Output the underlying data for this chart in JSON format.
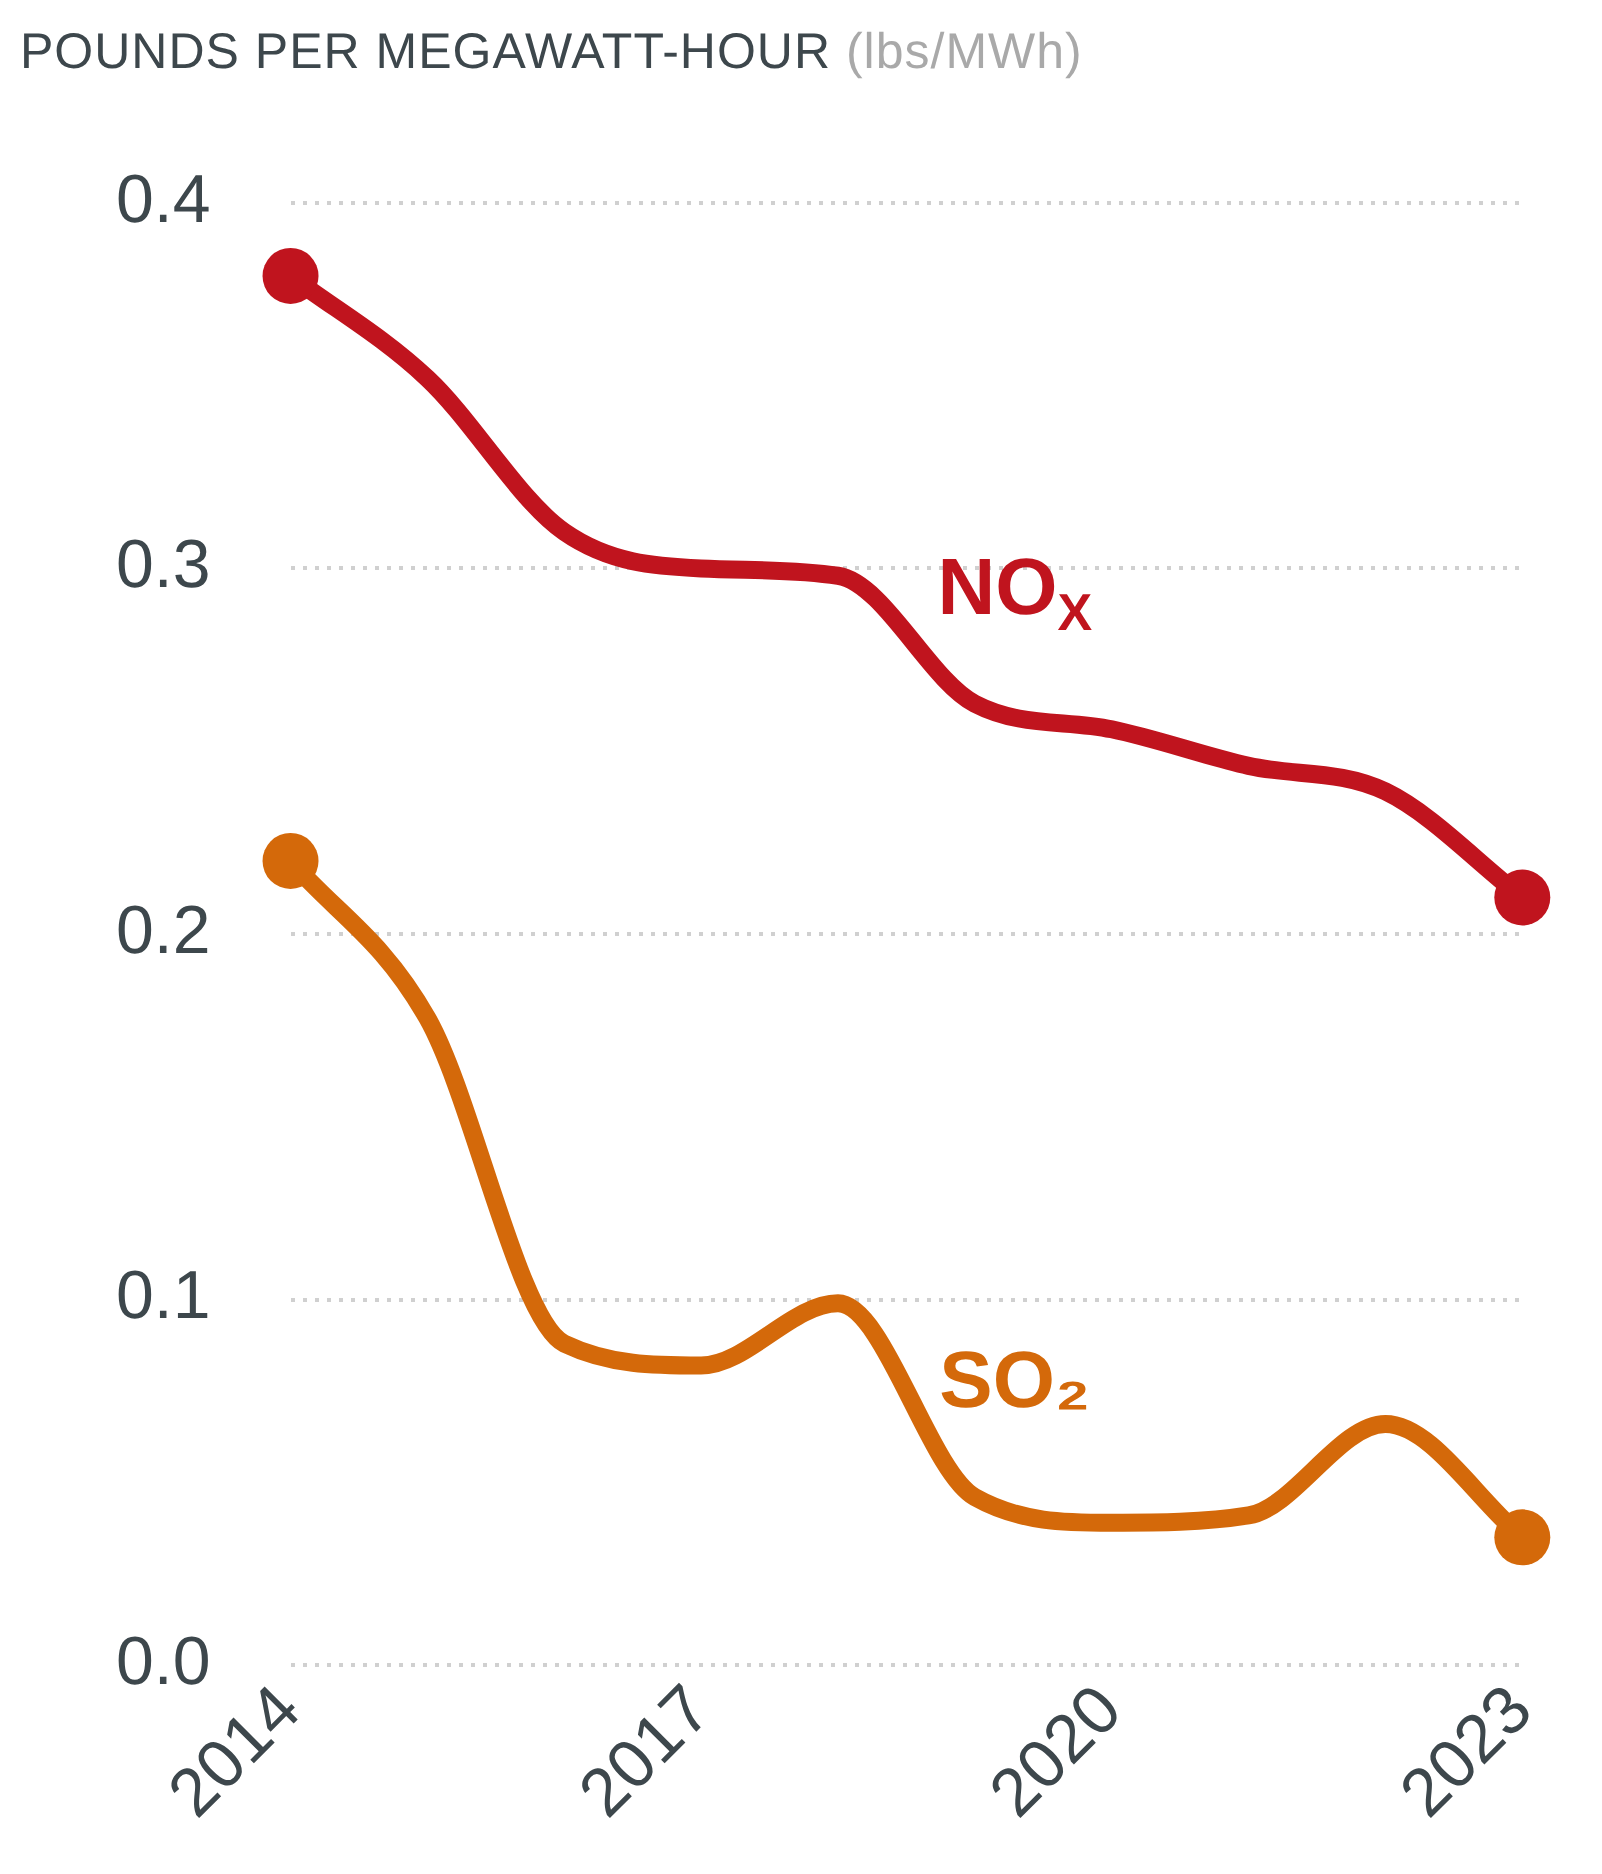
{
  "chart_data": {
    "type": "line",
    "title": "POUNDS PER MEGAWATT-HOUR",
    "ylabel": "(lbs/MWh)",
    "x": [
      2014,
      2015,
      2016,
      2017,
      2018,
      2019,
      2020,
      2021,
      2022,
      2023
    ],
    "series": [
      {
        "name": "NO$_{X}$",
        "color": "#c0141e",
        "values": [
          0.38,
          0.352,
          0.31,
          0.3,
          0.298,
          0.263,
          0.256,
          0.246,
          0.239,
          0.21
        ]
      },
      {
        "name": "SO₂",
        "color": "#d4690a",
        "values": [
          0.22,
          0.177,
          0.088,
          0.082,
          0.099,
          0.046,
          0.039,
          0.041,
          0.066,
          0.035
        ]
      }
    ],
    "xlim": [
      2014,
      2023
    ],
    "xticks": [
      2014,
      2017,
      2020,
      2023
    ],
    "ylim": [
      0,
      0.4
    ],
    "yticks": [
      {
        "value": 0,
        "label": "0.0"
      },
      0.1,
      0.2,
      0.3,
      0.4
    ],
    "grid": "y",
    "legend": false,
    "line_style": "solid"
  }
}
